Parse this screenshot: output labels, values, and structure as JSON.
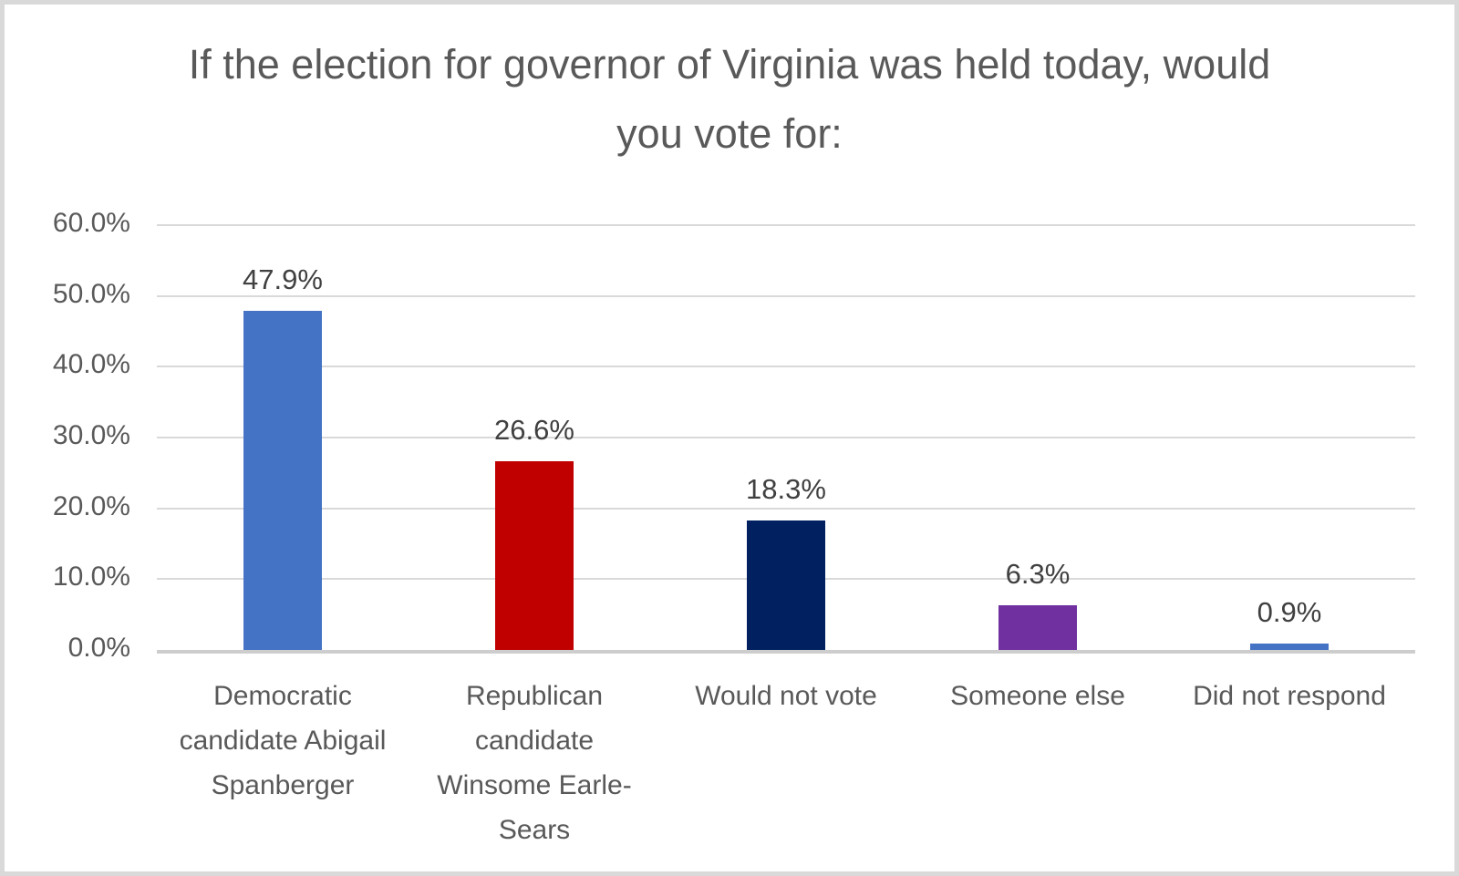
{
  "frame": {
    "border_color": "#D9D9D9",
    "background_color": "#FFFFFF"
  },
  "chart_data": {
    "type": "bar",
    "title": "If the election for governor of Virginia was held today, would you vote for:",
    "categories": [
      "Democratic candidate Abigail Spanberger",
      "Republican candidate Winsome Earle-Sears",
      "Would not vote",
      "Someone else",
      "Did not respond"
    ],
    "values": [
      47.9,
      26.6,
      18.3,
      6.3,
      0.9
    ],
    "value_labels": [
      "47.9%",
      "26.6%",
      "18.3%",
      "6.3%",
      "0.9%"
    ],
    "bar_colors": [
      "#4472C4",
      "#C00000",
      "#002060",
      "#7030A0",
      "#4472C4"
    ],
    "xlabel": "",
    "ylabel": "",
    "ylim": [
      0,
      60
    ],
    "yticks": [
      0,
      10,
      20,
      30,
      40,
      50,
      60
    ],
    "ytick_labels": [
      "0.0%",
      "10.0%",
      "20.0%",
      "30.0%",
      "40.0%",
      "50.0%",
      "60.0%"
    ],
    "grid": true,
    "legend": "none",
    "colors": {
      "title_text": "#595959",
      "axis_label_text": "#595959",
      "data_label_text": "#404040",
      "gridline": "#D9D9D9",
      "axis_line": "#CDCDCD"
    }
  }
}
